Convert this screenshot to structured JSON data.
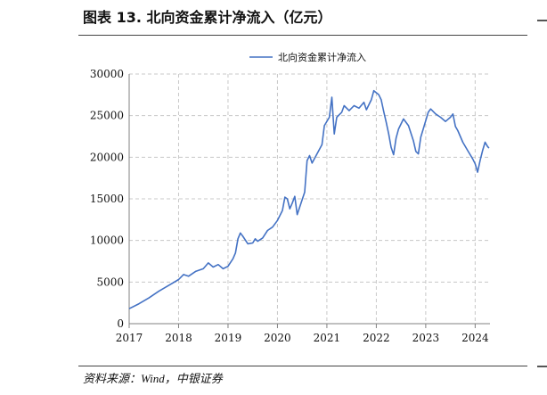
{
  "figure": {
    "title": "图表 13. 北向资金累计净流入（亿元）",
    "source": "资料来源：Wind，中银证券"
  },
  "colors": {
    "series": "#4472C4",
    "grid": "#C8C8C8",
    "axis": "#808080",
    "text": "#111111"
  },
  "chart_data": {
    "type": "line",
    "title": "",
    "xlabel": "",
    "ylabel": "",
    "legend_position": "top-center",
    "grid": true,
    "xlim": [
      2017.0,
      2024.3
    ],
    "ylim": [
      0,
      30000
    ],
    "x_ticks": [
      "2017",
      "2018",
      "2019",
      "2020",
      "2021",
      "2022",
      "2023",
      "2024"
    ],
    "y_ticks": [
      "0",
      "5000",
      "10000",
      "15000",
      "20000",
      "25000",
      "30000"
    ],
    "series": [
      {
        "name": "北向资金累计净流入",
        "points": [
          [
            2017.0,
            1800
          ],
          [
            2017.2,
            2400
          ],
          [
            2017.4,
            3100
          ],
          [
            2017.6,
            3900
          ],
          [
            2017.8,
            4600
          ],
          [
            2018.0,
            5300
          ],
          [
            2018.1,
            5900
          ],
          [
            2018.2,
            5700
          ],
          [
            2018.35,
            6300
          ],
          [
            2018.5,
            6600
          ],
          [
            2018.6,
            7300
          ],
          [
            2018.7,
            6800
          ],
          [
            2018.8,
            7100
          ],
          [
            2018.9,
            6600
          ],
          [
            2019.0,
            6900
          ],
          [
            2019.1,
            7800
          ],
          [
            2019.15,
            8500
          ],
          [
            2019.2,
            10200
          ],
          [
            2019.25,
            10900
          ],
          [
            2019.3,
            10500
          ],
          [
            2019.4,
            9600
          ],
          [
            2019.5,
            9700
          ],
          [
            2019.55,
            10200
          ],
          [
            2019.6,
            9900
          ],
          [
            2019.7,
            10300
          ],
          [
            2019.8,
            11200
          ],
          [
            2019.9,
            11600
          ],
          [
            2020.0,
            12400
          ],
          [
            2020.1,
            13600
          ],
          [
            2020.15,
            15200
          ],
          [
            2020.2,
            15000
          ],
          [
            2020.25,
            13800
          ],
          [
            2020.3,
            14500
          ],
          [
            2020.35,
            15300
          ],
          [
            2020.4,
            13100
          ],
          [
            2020.5,
            14900
          ],
          [
            2020.55,
            15800
          ],
          [
            2020.6,
            19600
          ],
          [
            2020.65,
            20200
          ],
          [
            2020.7,
            19300
          ],
          [
            2020.8,
            20400
          ],
          [
            2020.9,
            21500
          ],
          [
            2020.95,
            23800
          ],
          [
            2021.05,
            24800
          ],
          [
            2021.1,
            27200
          ],
          [
            2021.15,
            22800
          ],
          [
            2021.2,
            24800
          ],
          [
            2021.3,
            25400
          ],
          [
            2021.35,
            26200
          ],
          [
            2021.45,
            25600
          ],
          [
            2021.55,
            26200
          ],
          [
            2021.65,
            25900
          ],
          [
            2021.75,
            26600
          ],
          [
            2021.8,
            25700
          ],
          [
            2021.9,
            26900
          ],
          [
            2021.95,
            28000
          ],
          [
            2022.05,
            27500
          ],
          [
            2022.1,
            26900
          ],
          [
            2022.15,
            25500
          ],
          [
            2022.2,
            24200
          ],
          [
            2022.25,
            22800
          ],
          [
            2022.3,
            21200
          ],
          [
            2022.35,
            20300
          ],
          [
            2022.4,
            22300
          ],
          [
            2022.45,
            23400
          ],
          [
            2022.55,
            24600
          ],
          [
            2022.65,
            23800
          ],
          [
            2022.75,
            22000
          ],
          [
            2022.8,
            20700
          ],
          [
            2022.85,
            20400
          ],
          [
            2022.9,
            22400
          ],
          [
            2022.95,
            23400
          ],
          [
            2023.05,
            25400
          ],
          [
            2023.1,
            25800
          ],
          [
            2023.2,
            25200
          ],
          [
            2023.3,
            24800
          ],
          [
            2023.4,
            24300
          ],
          [
            2023.5,
            24800
          ],
          [
            2023.55,
            25200
          ],
          [
            2023.6,
            23700
          ],
          [
            2023.65,
            23200
          ],
          [
            2023.75,
            21800
          ],
          [
            2023.85,
            20800
          ],
          [
            2023.95,
            19800
          ],
          [
            2024.0,
            19200
          ],
          [
            2024.05,
            18200
          ],
          [
            2024.1,
            19600
          ],
          [
            2024.15,
            20800
          ],
          [
            2024.2,
            21800
          ],
          [
            2024.25,
            21300
          ],
          [
            2024.28,
            21100
          ]
        ]
      }
    ]
  }
}
